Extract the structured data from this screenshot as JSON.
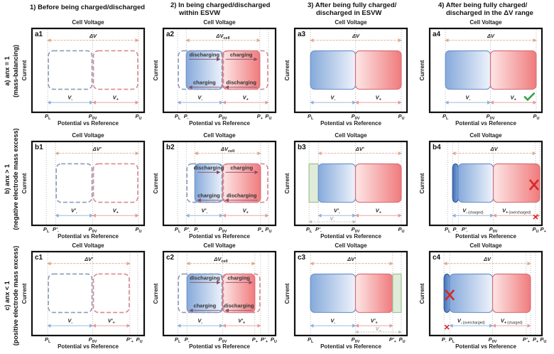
{
  "columns": [
    {
      "lines": [
        "1) Before being charged/discharged"
      ]
    },
    {
      "lines": [
        "2) In being charged/discharged",
        "within ESVW"
      ]
    },
    {
      "lines": [
        "3) After being fully charged/",
        "discharged in ESVW"
      ]
    },
    {
      "lines": [
        "4) After being fully charged/",
        "discharged in the ΔV range"
      ]
    }
  ],
  "rows": [
    {
      "line1": "a) anx = 1",
      "line2": "(mass-balancing)"
    },
    {
      "line1": "b) anx > 1",
      "line2": "(negative electrode mass excess)"
    },
    {
      "line1": "c) anx < 1",
      "line2": "(positive electrode mass excess)"
    }
  ],
  "axis": {
    "top": "Cell Voltage",
    "left": "Current",
    "bottom": "Potential vs Reference"
  },
  "process_labels": {
    "discharging": "discharging",
    "charging": "charging"
  },
  "colors": {
    "negative": "#6f93c8",
    "positive": "#d9707a",
    "excess": "#b9d3b0",
    "mark_x": "#d42a2a",
    "check": "#3aa04a"
  },
  "panels": [
    {
      "id": "a1",
      "range": {
        "t": "ΔV",
        "s": ""
      },
      "ticks": [
        {
          "t": "P",
          "s": "L"
        },
        {
          "t": "P",
          "s": "0V"
        },
        {
          "t": "P",
          "s": "U"
        }
      ],
      "segments": [
        {
          "t": "V",
          "s": "-"
        },
        {
          "t": "V",
          "s": "+"
        }
      ]
    },
    {
      "id": "a2",
      "range": {
        "t": "ΔV",
        "s": "cell"
      },
      "ticks": [
        {
          "t": "P",
          "s": "L"
        },
        {
          "t": "P",
          "s": "-"
        },
        {
          "t": "P",
          "s": "0V"
        },
        {
          "t": "P",
          "s": "+"
        },
        {
          "t": "P",
          "s": "U"
        }
      ],
      "segments": [
        {
          "t": "V",
          "s": "-"
        },
        {
          "t": "V",
          "s": "+"
        }
      ]
    },
    {
      "id": "a3",
      "range": {
        "t": "ΔV",
        "s": ""
      },
      "ticks": [
        {
          "t": "P",
          "s": "L"
        },
        {
          "t": "P",
          "s": "0V"
        },
        {
          "t": "P",
          "s": "U"
        }
      ],
      "segments": [
        {
          "t": "V",
          "s": "-"
        },
        {
          "t": "V",
          "s": "+"
        }
      ]
    },
    {
      "id": "a4",
      "range": {
        "t": "ΔV",
        "s": ""
      },
      "ticks": [
        {
          "t": "P",
          "s": "L"
        },
        {
          "t": "P",
          "s": "0V"
        },
        {
          "t": "P",
          "s": "U"
        }
      ],
      "segments": [
        {
          "t": "V",
          "s": "-"
        },
        {
          "t": "V",
          "s": "+"
        }
      ]
    },
    {
      "id": "b1",
      "range": {
        "t": "ΔV'",
        "s": ""
      },
      "ticks": [
        {
          "t": "P",
          "s": "L"
        },
        {
          "t": "P'",
          "s": "-"
        },
        {
          "t": "P",
          "s": "0V"
        },
        {
          "t": "P",
          "s": "U"
        }
      ],
      "segments": [
        {
          "t": "V'",
          "s": "-"
        },
        {
          "t": "V",
          "s": "+"
        }
      ]
    },
    {
      "id": "b2",
      "range": {
        "t": "ΔV",
        "s": "cell"
      },
      "ticks": [
        {
          "t": "P",
          "s": "L"
        },
        {
          "t": "P'",
          "s": "-"
        },
        {
          "t": "P",
          "s": "-"
        },
        {
          "t": "P",
          "s": "0V"
        },
        {
          "t": "P",
          "s": "+"
        },
        {
          "t": "P",
          "s": "U"
        }
      ],
      "segments": [
        {
          "t": "V'",
          "s": "-"
        },
        {
          "t": "V",
          "s": "+"
        }
      ]
    },
    {
      "id": "b3",
      "range": {
        "t": "ΔV'",
        "s": ""
      },
      "ticks": [
        {
          "t": "P",
          "s": "L"
        },
        {
          "t": "P'",
          "s": "-"
        },
        {
          "t": "P",
          "s": "0V"
        },
        {
          "t": "P",
          "s": "U"
        }
      ],
      "segments": [
        {
          "t": "V'",
          "s": "-"
        },
        {
          "t": "V",
          "s": "+"
        }
      ],
      "extra": {
        "t": "V",
        "s": "-"
      }
    },
    {
      "id": "b4",
      "range": {
        "t": "ΔV",
        "s": ""
      },
      "ticks": [
        {
          "t": "P",
          "s": "L"
        },
        {
          "t": "P",
          "s": "-"
        },
        {
          "t": "P'",
          "s": "-"
        },
        {
          "t": "P",
          "s": "0V"
        },
        {
          "t": "P",
          "s": "U"
        },
        {
          "t": "P",
          "s": "+"
        }
      ],
      "segments": [
        {
          "t": "V",
          "s": "-",
          "note": "(charged)"
        },
        {
          "t": "V",
          "s": "+",
          "note": "(overcharged)"
        }
      ]
    },
    {
      "id": "c1",
      "range": {
        "t": "ΔV'",
        "s": ""
      },
      "ticks": [
        {
          "t": "P",
          "s": "L"
        },
        {
          "t": "P",
          "s": "0V"
        },
        {
          "t": "P'",
          "s": "+"
        },
        {
          "t": "P",
          "s": "U"
        }
      ],
      "segments": [
        {
          "t": "V",
          "s": "-"
        },
        {
          "t": "V'",
          "s": "+"
        }
      ]
    },
    {
      "id": "c2",
      "range": {
        "t": "ΔV",
        "s": "cell"
      },
      "ticks": [
        {
          "t": "P",
          "s": "L"
        },
        {
          "t": "P",
          "s": "-"
        },
        {
          "t": "P",
          "s": "0V"
        },
        {
          "t": "P",
          "s": "+"
        },
        {
          "t": "P'",
          "s": "+"
        },
        {
          "t": "P",
          "s": "U"
        }
      ],
      "segments": [
        {
          "t": "V",
          "s": "-"
        },
        {
          "t": "V'",
          "s": "+"
        }
      ]
    },
    {
      "id": "c3",
      "range": {
        "t": "ΔV'",
        "s": ""
      },
      "ticks": [
        {
          "t": "P",
          "s": "L"
        },
        {
          "t": "P",
          "s": "0V"
        },
        {
          "t": "P'",
          "s": "+"
        },
        {
          "t": "P",
          "s": "U"
        }
      ],
      "segments": [
        {
          "t": "V",
          "s": "-"
        },
        {
          "t": "V'",
          "s": "+"
        }
      ],
      "extra": {
        "t": "V",
        "s": "+"
      }
    },
    {
      "id": "c4",
      "range": {
        "t": "ΔV",
        "s": ""
      },
      "ticks": [
        {
          "t": "P",
          "s": "-"
        },
        {
          "t": "P",
          "s": "L"
        },
        {
          "t": "P",
          "s": "0V"
        },
        {
          "t": "P'",
          "s": "+"
        },
        {
          "t": "P",
          "s": "+"
        },
        {
          "t": "P",
          "s": "U"
        }
      ],
      "segments": [
        {
          "t": "V",
          "s": "-",
          "note": "(overcharged)"
        },
        {
          "t": "V",
          "s": "+",
          "note": "(charged)"
        }
      ]
    }
  ]
}
